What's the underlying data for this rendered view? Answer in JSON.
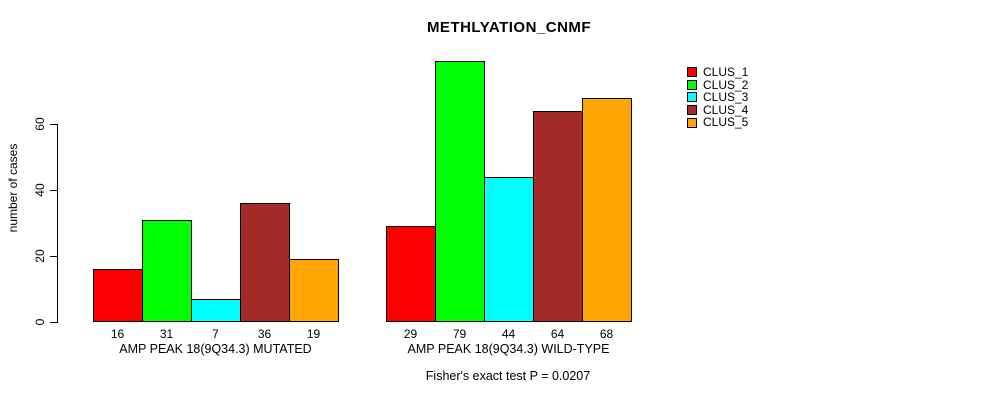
{
  "chart_data": {
    "type": "bar",
    "title": "METHLYATION_CNMF",
    "ylabel": "number of cases",
    "xlabel": "",
    "yticks": [
      0,
      20,
      40,
      60
    ],
    "ylim": [
      0,
      80
    ],
    "grid": false,
    "bar_value_labels_shown": true,
    "annotation": "Fisher's exact test P = 0.0207",
    "legend": {
      "position": "right-outside",
      "entries": [
        {
          "label": "CLUS_1",
          "color": "#FF0000"
        },
        {
          "label": "CLUS_2",
          "color": "#00FF00"
        },
        {
          "label": "CLUS_3",
          "color": "#00FFFF"
        },
        {
          "label": "CLUS_4",
          "color": "#A52A2A"
        },
        {
          "label": "CLUS_5",
          "color": "#FFA500"
        }
      ]
    },
    "groups": [
      {
        "label": "AMP PEAK 18(9Q34.3) MUTATED",
        "values": [
          16,
          31,
          7,
          36,
          19
        ]
      },
      {
        "label": "AMP PEAK 18(9Q34.3) WILD-TYPE",
        "values": [
          29,
          79,
          44,
          64,
          68
        ]
      }
    ],
    "series": [
      {
        "name": "CLUS_1",
        "color": "#FF0000",
        "values": [
          16,
          29
        ]
      },
      {
        "name": "CLUS_2",
        "color": "#00FF00",
        "values": [
          31,
          79
        ]
      },
      {
        "name": "CLUS_3",
        "color": "#00FFFF",
        "values": [
          7,
          44
        ]
      },
      {
        "name": "CLUS_4",
        "color": "#A52A2A",
        "values": [
          36,
          64
        ]
      },
      {
        "name": "CLUS_5",
        "color": "#FFA500",
        "values": [
          19,
          68
        ]
      }
    ]
  }
}
